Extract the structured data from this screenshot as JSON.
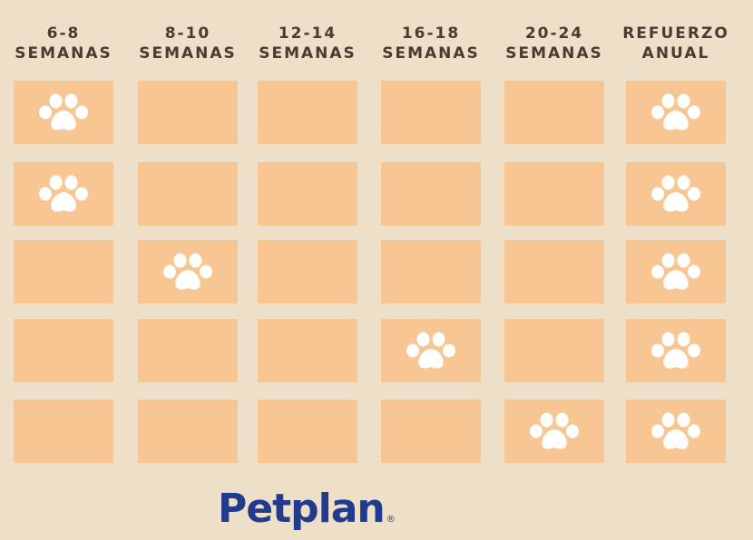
{
  "colors": {
    "background": "#EEDFC9",
    "cell": "#F7C692",
    "paw": "#FFFFFF",
    "header_text": "#4A3B33",
    "logo": "#233B8E"
  },
  "columns": [
    {
      "line1": "6-8",
      "line2": "SEMANAS"
    },
    {
      "line1": "8-10",
      "line2": "SEMANAS"
    },
    {
      "line1": "12-14",
      "line2": "SEMANAS"
    },
    {
      "line1": "16-18",
      "line2": "SEMANAS"
    },
    {
      "line1": "20-24",
      "line2": "SEMANAS"
    },
    {
      "line1": "REFUERZO",
      "line2": "ANUAL"
    }
  ],
  "grid": [
    [
      true,
      false,
      false,
      false,
      false,
      true
    ],
    [
      true,
      false,
      false,
      false,
      false,
      true
    ],
    [
      false,
      true,
      false,
      false,
      false,
      true
    ],
    [
      false,
      false,
      false,
      true,
      false,
      true
    ],
    [
      false,
      false,
      false,
      false,
      true,
      true
    ]
  ],
  "icons": {
    "marker": "paw-icon"
  },
  "logo": {
    "text": "Petplan",
    "registered_mark": "®"
  }
}
